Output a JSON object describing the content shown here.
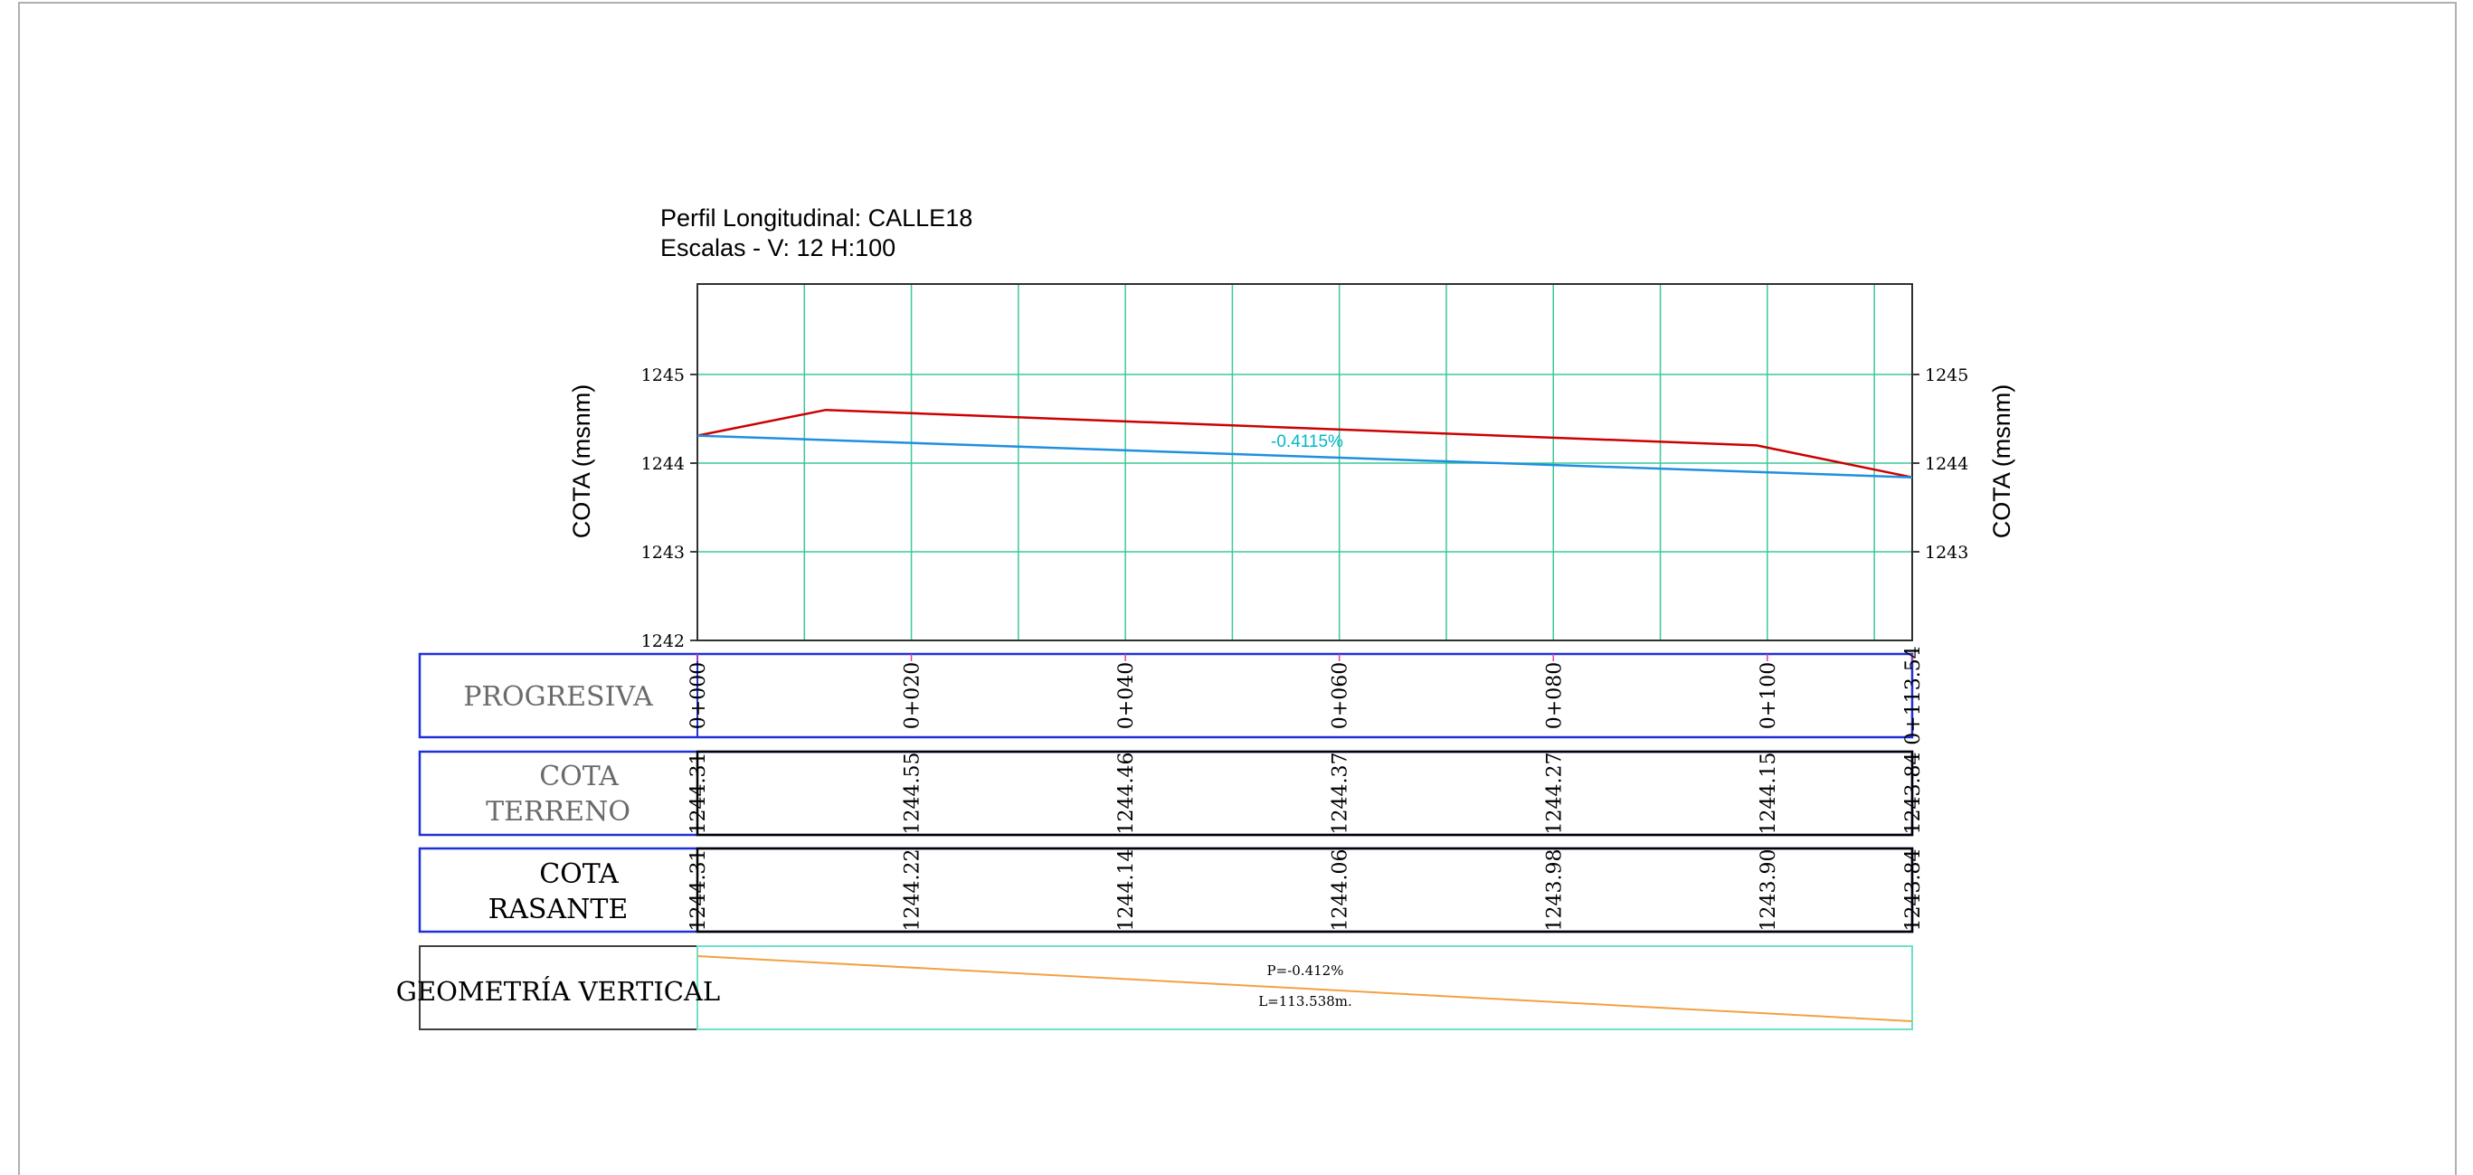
{
  "header": {
    "title": "Perfil Longitudinal: CALLE18",
    "subtitle": "Escalas - V: 12 H:100"
  },
  "axis": {
    "left_label": "COTA (msnm)",
    "right_label": "COTA (msnm)",
    "y_ticks_left": [
      "1245",
      "1244",
      "1243",
      "1242"
    ],
    "y_ticks_right": [
      "1245",
      "1244",
      "1243"
    ]
  },
  "slope_label": "-0.4115%",
  "rows": {
    "progresiva": {
      "label": "PROGRESIVA",
      "values": [
        "0+000",
        "0+020",
        "0+040",
        "0+060",
        "0+080",
        "0+100",
        "0+113.54"
      ]
    },
    "cota_terreno": {
      "label_line1": "COTA",
      "label_line2": "TERRENO",
      "values": [
        "1244.31",
        "1244.55",
        "1244.46",
        "1244.37",
        "1244.27",
        "1244.15",
        "1243.84"
      ]
    },
    "cota_rasante": {
      "label_line1": "COTA",
      "label_line2": "RASANTE",
      "values": [
        "1244.31",
        "1244.22",
        "1244.14",
        "1244.06",
        "1243.98",
        "1243.90",
        "1243.84"
      ]
    },
    "geometria": {
      "label": "GEOMETRÍA VERTICAL",
      "slope_text": "P=-0.412%",
      "length_text": "L=113.538m."
    }
  },
  "chart_data": {
    "type": "line",
    "xlabel": "",
    "ylabel": "COTA (msnm)",
    "xlim": [
      0,
      113.54
    ],
    "ylim": [
      1242,
      1246
    ],
    "grid": true,
    "series": [
      {
        "color": "#cc0000",
        "x": [
          0,
          12,
          99,
          113.54
        ],
        "y": [
          1244.31,
          1244.6,
          1244.2,
          1243.84
        ]
      },
      {
        "color": "#1f8fe0",
        "x": [
          0,
          113.54
        ],
        "y": [
          1244.31,
          1243.84
        ]
      }
    ]
  },
  "colors": {
    "grid": "#3cc896",
    "terrain": "#cc0000",
    "grade": "#1f8fe0",
    "slope_label": "#00b8c8",
    "band_border": "#2030d8",
    "geometry_line": "#f4a040",
    "geometry_border": "#70e0c8"
  }
}
